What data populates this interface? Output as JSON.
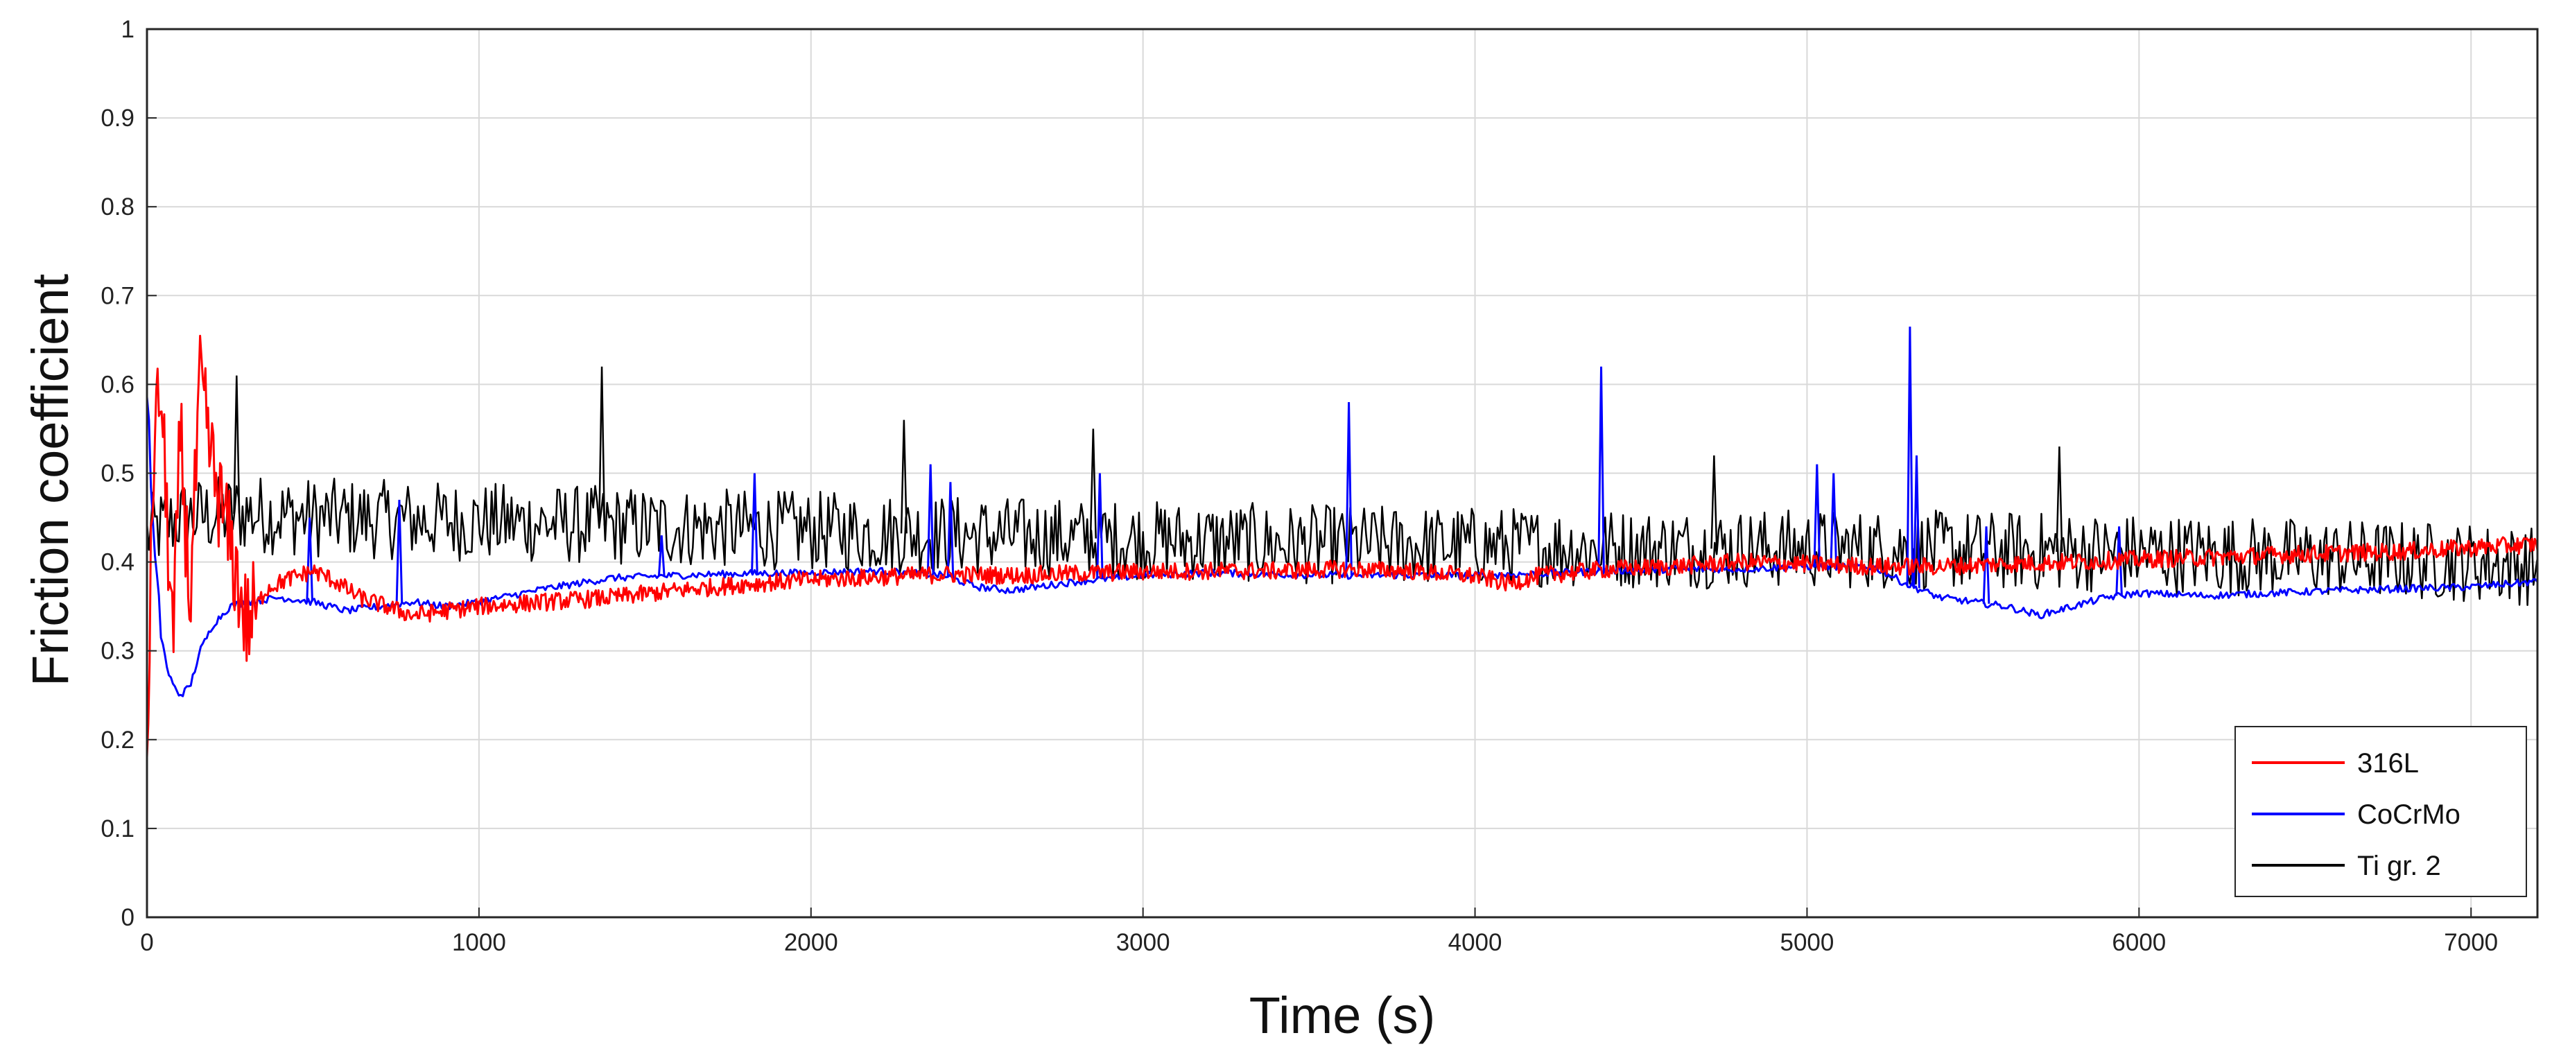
{
  "chart_data": {
    "type": "line",
    "title": "",
    "xlabel": "Time (s)",
    "ylabel": "Friction coefficient",
    "xlim": [
      0,
      7200
    ],
    "ylim": [
      0,
      1
    ],
    "x_ticks": [
      0,
      1000,
      2000,
      3000,
      4000,
      5000,
      6000,
      7000
    ],
    "y_ticks": [
      0,
      0.1,
      0.2,
      0.3,
      0.4,
      0.5,
      0.6,
      0.7,
      0.8,
      0.9,
      1
    ],
    "x_tick_labels": [
      "0",
      "1000",
      "2000",
      "3000",
      "4000",
      "5000",
      "6000",
      "7000"
    ],
    "y_tick_labels": [
      "0",
      "0.1",
      "0.2",
      "0.3",
      "0.4",
      "0.5",
      "0.6",
      "0.7",
      "0.8",
      "0.9",
      "1"
    ],
    "grid": true,
    "legend_position": "bottom-right",
    "series": [
      {
        "name": "316L",
        "color": "#ff0000",
        "noise": 0.01,
        "x": [
          0,
          20,
          40,
          60,
          80,
          100,
          130,
          160,
          200,
          250,
          300,
          330,
          360,
          420,
          500,
          560,
          640,
          720,
          800,
          900,
          1000,
          1200,
          1400,
          1600,
          1800,
          2000,
          2200,
          2400,
          2600,
          2800,
          3000,
          3200,
          3400,
          3600,
          3800,
          4000,
          4100,
          4200,
          4400,
          4600,
          4800,
          5000,
          5200,
          5400,
          5600,
          5800,
          6000,
          6200,
          6400,
          6600,
          6800,
          7000,
          7200
        ],
        "y": [
          0.18,
          0.52,
          0.6,
          0.45,
          0.3,
          0.55,
          0.35,
          0.6,
          0.5,
          0.42,
          0.33,
          0.35,
          0.37,
          0.38,
          0.39,
          0.38,
          0.36,
          0.35,
          0.34,
          0.345,
          0.35,
          0.355,
          0.36,
          0.368,
          0.375,
          0.38,
          0.383,
          0.386,
          0.385,
          0.387,
          0.389,
          0.39,
          0.39,
          0.392,
          0.39,
          0.384,
          0.376,
          0.385,
          0.392,
          0.395,
          0.4,
          0.398,
          0.395,
          0.395,
          0.398,
          0.4,
          0.403,
          0.405,
          0.408,
          0.41,
          0.412,
          0.416,
          0.42
        ]
      },
      {
        "name": "CoCrMo",
        "color": "#0000ff",
        "noise": 0.004,
        "x": [
          0,
          20,
          40,
          60,
          80,
          100,
          130,
          160,
          200,
          250,
          300,
          400,
          500,
          600,
          700,
          800,
          900,
          1000,
          1200,
          1400,
          1600,
          1800,
          2000,
          2200,
          2400,
          2500,
          2600,
          2800,
          3000,
          3200,
          3400,
          3600,
          3800,
          4000,
          4200,
          4400,
          4600,
          4800,
          5000,
          5200,
          5300,
          5400,
          5500,
          5600,
          5700,
          5800,
          5900,
          6000,
          6200,
          6400,
          6600,
          6800,
          7000,
          7200
        ],
        "y": [
          0.6,
          0.42,
          0.33,
          0.28,
          0.26,
          0.25,
          0.26,
          0.3,
          0.33,
          0.35,
          0.355,
          0.36,
          0.355,
          0.345,
          0.35,
          0.355,
          0.35,
          0.355,
          0.37,
          0.382,
          0.385,
          0.387,
          0.388,
          0.39,
          0.385,
          0.372,
          0.368,
          0.378,
          0.385,
          0.388,
          0.386,
          0.385,
          0.385,
          0.385,
          0.387,
          0.39,
          0.392,
          0.392,
          0.395,
          0.395,
          0.375,
          0.36,
          0.355,
          0.35,
          0.34,
          0.35,
          0.36,
          0.365,
          0.362,
          0.365,
          0.368,
          0.37,
          0.372,
          0.378
        ]
      },
      {
        "name": "Ti gr. 2",
        "color": "#000000",
        "noise": 0.045,
        "x": [
          0,
          100,
          300,
          500,
          1000,
          1500,
          2000,
          2500,
          3000,
          3500,
          4000,
          4500,
          5000,
          5500,
          6000,
          6500,
          7000,
          7200
        ],
        "y": [
          0.43,
          0.45,
          0.455,
          0.45,
          0.445,
          0.44,
          0.435,
          0.43,
          0.425,
          0.42,
          0.418,
          0.415,
          0.415,
          0.413,
          0.41,
          0.405,
          0.4,
          0.395
        ]
      }
    ],
    "spikes": [
      {
        "series": "CoCrMo",
        "x": 3620,
        "y": 0.58
      },
      {
        "series": "CoCrMo",
        "x": 4380,
        "y": 0.62
      },
      {
        "series": "CoCrMo",
        "x": 5310,
        "y": 0.665
      },
      {
        "series": "CoCrMo",
        "x": 5330,
        "y": 0.52
      },
      {
        "series": "CoCrMo",
        "x": 5030,
        "y": 0.51
      },
      {
        "series": "CoCrMo",
        "x": 5080,
        "y": 0.5
      },
      {
        "series": "CoCrMo",
        "x": 2360,
        "y": 0.51
      },
      {
        "series": "CoCrMo",
        "x": 2420,
        "y": 0.49
      },
      {
        "series": "CoCrMo",
        "x": 1830,
        "y": 0.5
      },
      {
        "series": "CoCrMo",
        "x": 2870,
        "y": 0.5
      },
      {
        "series": "CoCrMo",
        "x": 760,
        "y": 0.47
      },
      {
        "series": "CoCrMo",
        "x": 490,
        "y": 0.45
      },
      {
        "series": "CoCrMo",
        "x": 1550,
        "y": 0.43
      },
      {
        "series": "CoCrMo",
        "x": 5940,
        "y": 0.44
      },
      {
        "series": "CoCrMo",
        "x": 5540,
        "y": 0.44
      },
      {
        "series": "Ti gr. 2",
        "x": 1370,
        "y": 0.62
      },
      {
        "series": "Ti gr. 2",
        "x": 270,
        "y": 0.61
      },
      {
        "series": "Ti gr. 2",
        "x": 2280,
        "y": 0.56
      },
      {
        "series": "Ti gr. 2",
        "x": 2850,
        "y": 0.55
      },
      {
        "series": "Ti gr. 2",
        "x": 5760,
        "y": 0.53
      },
      {
        "series": "Ti gr. 2",
        "x": 4720,
        "y": 0.52
      }
    ]
  }
}
